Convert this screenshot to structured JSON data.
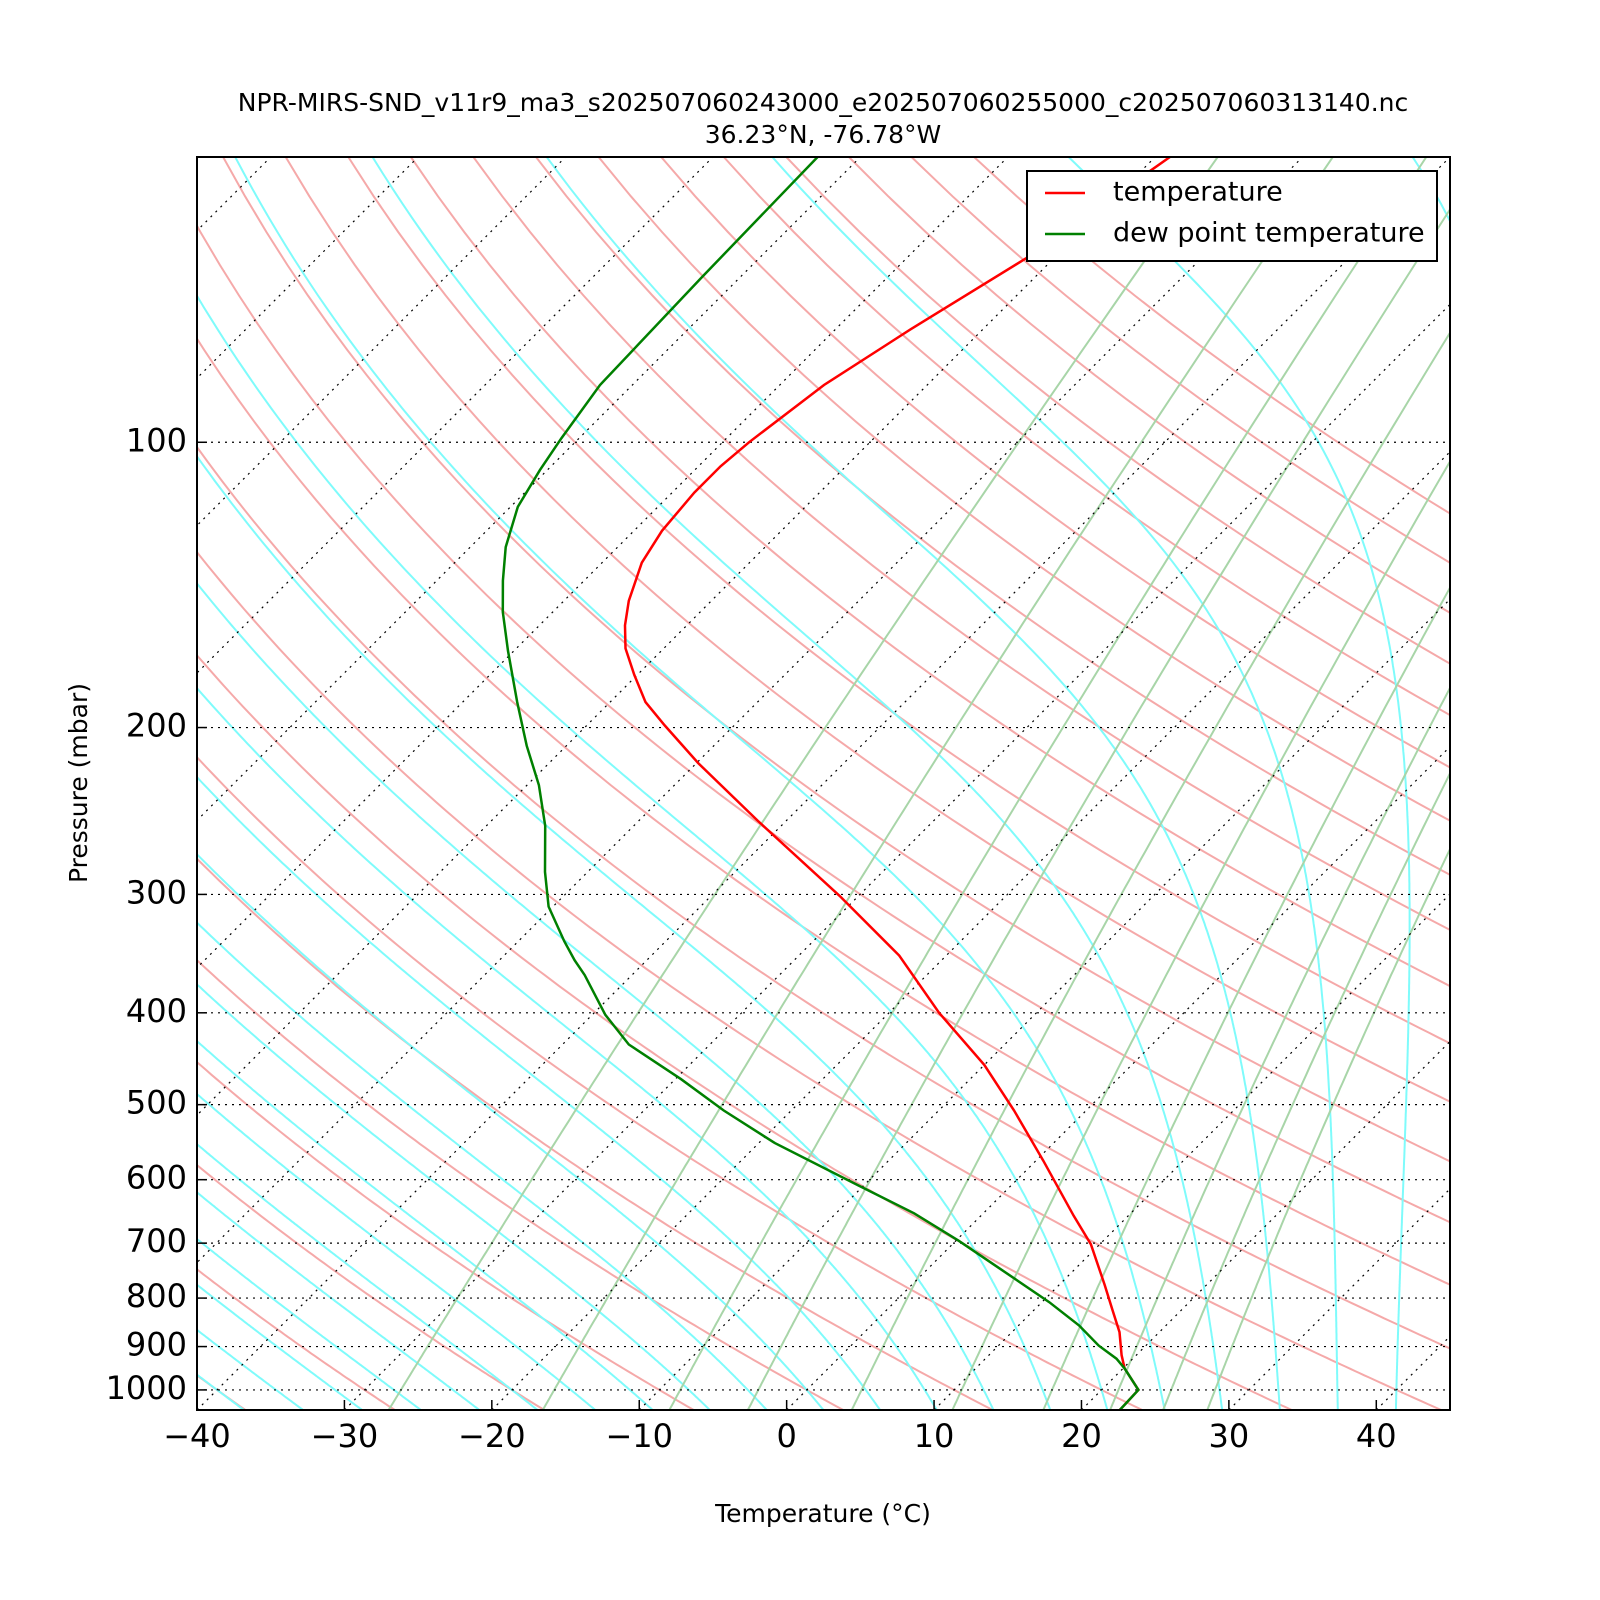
{
  "chart_data": {
    "type": "skewt",
    "title": "NPR-MIRS-SND_v11r9_ma3_s202507060243000_e202507060255000_c202507060313140.nc",
    "subtitle": "36.23°N, -76.78°W",
    "x_label": "Temperature (°C)",
    "y_label": "Pressure (mbar)",
    "y_scale": "log",
    "xlim": [
      -40,
      45
    ],
    "ylim": [
      1050,
      50
    ],
    "xticks": [
      {
        "value": -40,
        "label": "−40"
      },
      {
        "value": -30,
        "label": "−30"
      },
      {
        "value": -20,
        "label": "−20"
      },
      {
        "value": -10,
        "label": "−10"
      },
      0,
      10,
      20,
      30,
      40
    ],
    "yticks": [
      100,
      200,
      300,
      400,
      500,
      600,
      700,
      800,
      900,
      1000
    ],
    "grid": true,
    "legend": "upper right",
    "series": [
      {
        "name": "temperature",
        "color": "#ff0000",
        "x": [
          -59.0,
          -61.9,
          -64.9,
          -67.0,
          -68.2,
          -68.5,
          -68.5,
          -68.1,
          -67.3,
          -65.6,
          -64.2,
          -62.6,
          -60.2,
          -57.6,
          -54.7,
          -49.9,
          -41.9,
          -31.3,
          -23.2,
          -16.6,
          -10.0,
          -4.9,
          0.5,
          6.3,
          9.4,
          13.1,
          15.3,
          17.3,
          19.0,
          20.1,
          22.5,
          22.6
        ],
        "values": [
          50,
          64,
          76,
          87,
          100,
          106,
          113,
          124,
          134,
          147,
          156,
          165,
          176,
          188,
          199,
          218,
          251,
          301,
          348,
          400,
          454,
          507,
          573,
          655,
          702,
          775,
          823,
          869,
          919,
          949,
          1000,
          1050
        ]
      },
      {
        "name": "dew point temperature",
        "color": "#008000",
        "x": [
          -82.9,
          -82.6,
          -82.2,
          -81.2,
          -80.5,
          -79.5,
          -77.6,
          -75.5,
          -73.4,
          -70.4,
          -66.3,
          -62.7,
          -59.2,
          -56.0,
          -52.9,
          -50.3,
          -46.9,
          -44.9,
          -43.2,
          -39.1,
          -35.5,
          -29.6,
          -24.6,
          -18.9,
          -10.3,
          -4.7,
          0.2,
          4.8,
          10.5,
          14.1,
          16.8,
          18.9,
          20.1,
          22.5,
          22.6
        ],
        "values": [
          50,
          67,
          87,
          99,
          107,
          117,
          129,
          140,
          151,
          166,
          188,
          209,
          230,
          254,
          284,
          309,
          336,
          352,
          365,
          402,
          432,
          470,
          507,
          549,
          609,
          651,
          696,
          744,
          808,
          855,
          898,
          927,
          949,
          1000,
          1050
        ]
      }
    ]
  }
}
